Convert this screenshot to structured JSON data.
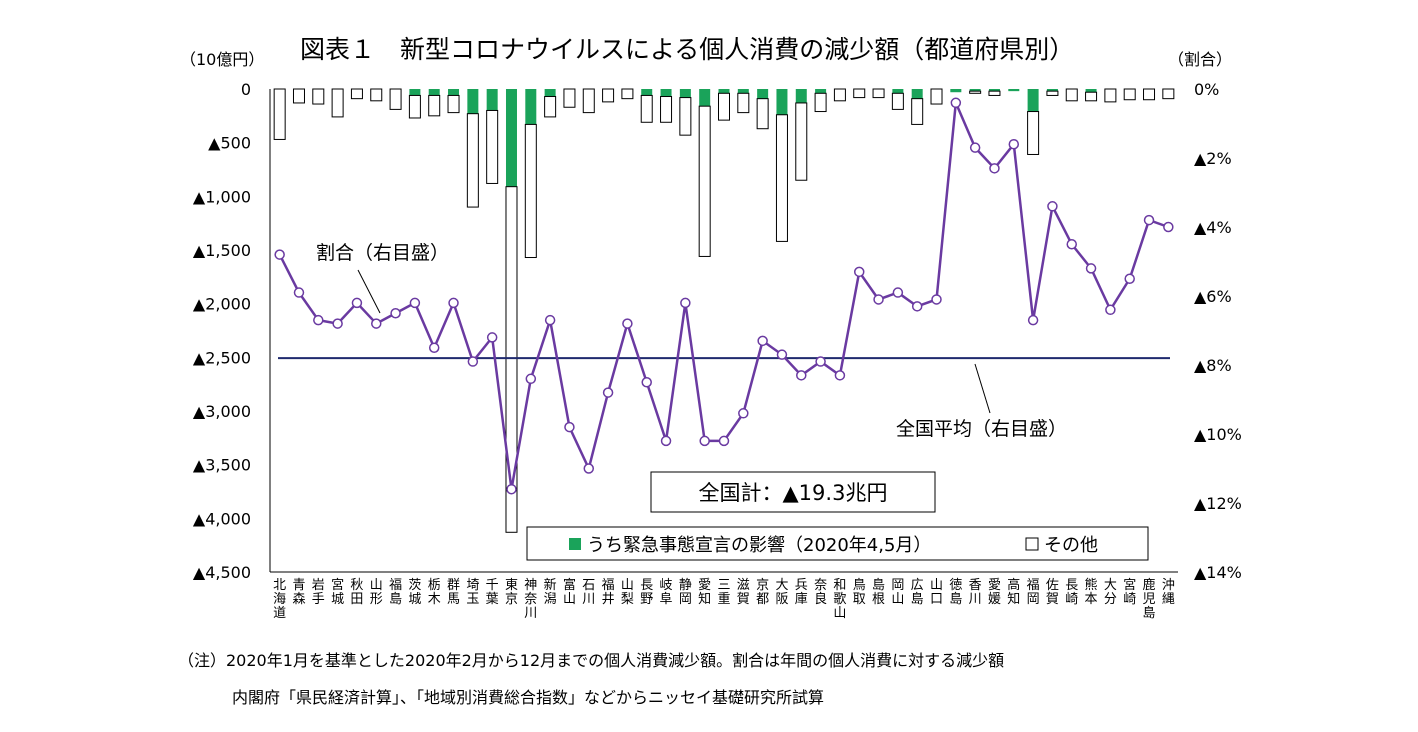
{
  "title": "図表１　新型コロナウイルスによる個人消費の減少額（都道府県別）",
  "left_unit": "（10億円）",
  "right_unit": "（割合）",
  "notes": [
    "（注）2020年1月を基準とした2020年2月から12月までの個人消費減少額。割合は年間の個人消費に対する減少額",
    "内閣府「県民経済計算」、「地域別消費総合指数」などからニッセイ基礎研究所試算"
  ],
  "colors": {
    "emergency": "#1aa35a",
    "other": "#ffffff",
    "line": "#6a3aa1",
    "average": "#1f2a6e"
  },
  "chart_data": {
    "type": "bar",
    "categories": [
      "北海道",
      "青森",
      "岩手",
      "宮城",
      "秋田",
      "山形",
      "福島",
      "茨城",
      "栃木",
      "群馬",
      "埼玉",
      "千葉",
      "東京",
      "神奈川",
      "新潟",
      "富山",
      "石川",
      "福井",
      "山梨",
      "長野",
      "岐阜",
      "静岡",
      "愛知",
      "三重",
      "滋賀",
      "京都",
      "大阪",
      "兵庫",
      "奈良",
      "和歌山",
      "鳥取",
      "島根",
      "岡山",
      "広島",
      "山口",
      "徳島",
      "香川",
      "愛媛",
      "高知",
      "福岡",
      "佐賀",
      "長崎",
      "熊本",
      "大分",
      "宮崎",
      "鹿児島",
      "沖縄"
    ],
    "y_left": {
      "ylim": [
        0,
        4500
      ],
      "ticks": [
        0,
        500,
        1000,
        1500,
        2000,
        2500,
        3000,
        3500,
        4000,
        4500
      ],
      "tick_labels": [
        "0",
        "▲500",
        "▲1,000",
        "▲1,500",
        "▲2,000",
        "▲2,500",
        "▲3,000",
        "▲3,500",
        "▲4,000",
        "▲4,500"
      ]
    },
    "y_right": {
      "ylim": [
        0,
        14
      ],
      "ticks": [
        0,
        2,
        4,
        6,
        8,
        10,
        12,
        14
      ],
      "tick_labels": [
        "0%",
        "▲2%",
        "▲4%",
        "▲6%",
        "▲8%",
        "▲10%",
        "▲12%",
        "▲14%"
      ]
    },
    "series": [
      {
        "name": "うち緊急事態宣言の影響（2020年4,5月）",
        "kind": "stacked-bar",
        "values": [
          0,
          0,
          0,
          0,
          0,
          0,
          0,
          60,
          60,
          60,
          230,
          200,
          910,
          330,
          70,
          0,
          0,
          0,
          0,
          60,
          70,
          80,
          160,
          40,
          40,
          90,
          240,
          130,
          40,
          0,
          0,
          0,
          40,
          90,
          0,
          30,
          20,
          20,
          20,
          210,
          20,
          0,
          30,
          0,
          0,
          0,
          0
        ]
      },
      {
        "name": "その他",
        "kind": "stacked-bar",
        "values": [
          470,
          130,
          140,
          260,
          90,
          110,
          190,
          210,
          190,
          160,
          870,
          680,
          3220,
          1240,
          190,
          170,
          220,
          120,
          90,
          250,
          240,
          350,
          1400,
          250,
          180,
          280,
          1180,
          720,
          170,
          110,
          80,
          80,
          150,
          240,
          140,
          0,
          20,
          40,
          0,
          400,
          40,
          110,
          80,
          120,
          100,
          100,
          90
        ]
      },
      {
        "name": "割合（右目盛）",
        "kind": "line",
        "values": [
          4.8,
          5.9,
          6.7,
          6.8,
          6.2,
          6.8,
          6.5,
          6.2,
          7.5,
          6.2,
          7.9,
          7.2,
          11.6,
          8.4,
          6.7,
          9.8,
          11.0,
          8.8,
          6.8,
          8.5,
          10.2,
          6.2,
          10.2,
          10.2,
          9.4,
          7.3,
          7.7,
          8.3,
          7.9,
          8.3,
          5.3,
          6.1,
          5.9,
          6.3,
          6.1,
          0.4,
          1.7,
          2.3,
          1.6,
          6.7,
          3.4,
          4.5,
          5.2,
          6.4,
          5.5,
          3.8,
          4.0
        ]
      },
      {
        "name": "全国平均（右目盛）",
        "kind": "hline",
        "value": 7.8
      }
    ],
    "annotations": {
      "ratio_label": "割合（右目盛）",
      "average_label": "全国平均（右目盛）",
      "total": "全国計：▲19.3兆円"
    },
    "legend": {
      "emergency": "うち緊急事態宣言の影響（2020年4,5月）",
      "other": "その他",
      "placement": "bottom-right"
    }
  }
}
